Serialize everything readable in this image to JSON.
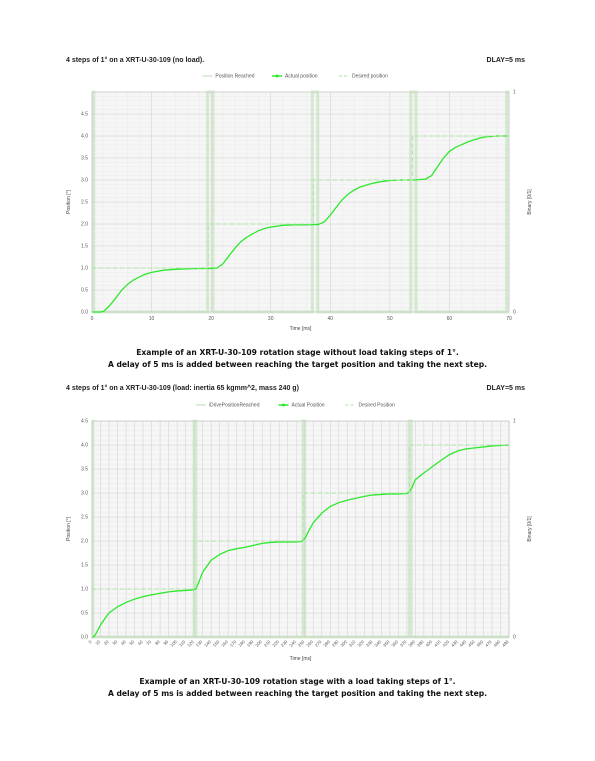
{
  "chart_data": [
    {
      "type": "line",
      "title": "4 steps of 1° on a XRT-U-30-109 (no load).",
      "delay_label": "DLAY=5 ms",
      "xlabel": "Time [ms]",
      "ylabel": "Position [°]",
      "y2label": "Binary [0/1]",
      "xlim": [
        0,
        70
      ],
      "ylim": [
        0,
        5
      ],
      "x_ticks": [
        "0",
        "10",
        "20",
        "30",
        "40",
        "50",
        "60",
        "70"
      ],
      "x_tick_values": [
        0,
        10,
        20,
        30,
        40,
        50,
        60,
        70
      ],
      "y_ticks": [
        "0.0",
        "0.5",
        "1.0",
        "1.5",
        "2.0",
        "2.5",
        "3.0",
        "3.5",
        "4.0",
        "4.5"
      ],
      "y_tick_values": [
        0,
        0.5,
        1,
        1.5,
        2,
        2.5,
        3,
        3.5,
        4,
        4.5
      ],
      "y2_ticks": [
        "0",
        "1"
      ],
      "grid": true,
      "legend_position": "top-center",
      "series": [
        {
          "name": "Position Reached",
          "style": "binary",
          "color": "#b9dcb3",
          "x": [
            0,
            0.3,
            0.3,
            19.4,
            19.4,
            20.3,
            20.3,
            37.0,
            37.0,
            37.9,
            37.9,
            53.5,
            53.5,
            54.4,
            54.4,
            69.6,
            69.6,
            70
          ],
          "values": [
            1,
            1,
            0,
            0,
            1,
            1,
            0,
            0,
            1,
            1,
            0,
            0,
            1,
            1,
            0,
            0,
            1,
            1
          ]
        },
        {
          "name": "Actual position",
          "style": "solid",
          "color": "#2ee82e",
          "x": [
            0,
            1,
            1.5,
            2,
            3,
            4,
            5,
            6,
            7,
            8,
            9,
            10,
            12,
            14,
            16,
            18,
            20,
            21,
            22,
            23,
            24,
            25,
            26,
            27,
            28,
            29,
            30,
            32,
            34,
            36,
            38,
            39,
            40,
            41,
            42,
            43,
            44,
            45,
            46,
            47,
            48,
            49,
            50,
            52,
            54,
            56,
            57,
            58,
            59,
            60,
            61,
            62,
            63,
            64,
            65,
            66,
            67,
            68,
            70
          ],
          "values": [
            0,
            0,
            0,
            0.02,
            0.15,
            0.32,
            0.5,
            0.63,
            0.73,
            0.8,
            0.86,
            0.9,
            0.95,
            0.97,
            0.98,
            0.99,
            0.99,
            1.0,
            1.1,
            1.28,
            1.45,
            1.6,
            1.7,
            1.78,
            1.85,
            1.9,
            1.93,
            1.97,
            1.98,
            1.98,
            1.99,
            2.05,
            2.2,
            2.38,
            2.55,
            2.68,
            2.77,
            2.84,
            2.88,
            2.92,
            2.95,
            2.97,
            2.99,
            3.0,
            3.0,
            3.02,
            3.1,
            3.3,
            3.5,
            3.65,
            3.74,
            3.8,
            3.86,
            3.91,
            3.95,
            3.98,
            3.99,
            4.0,
            4.0
          ]
        },
        {
          "name": "Desired position",
          "style": "dashed",
          "color": "#a8e6a0",
          "x": [
            0,
            19.5,
            19.5,
            37.2,
            37.2,
            53.8,
            53.8,
            70
          ],
          "values": [
            1,
            1,
            2,
            2,
            3,
            3,
            4,
            4
          ]
        }
      ]
    },
    {
      "type": "line",
      "title": "4 steps of 1° on a XRT-U-30-109 (load: inertia 65 kgmm^2, mass 240 g)",
      "delay_label": "DLAY=5 ms",
      "xlabel": "Time [ms]",
      "ylabel": "Position [°]",
      "y2label": "Binary [0/1]",
      "xlim": [
        0,
        490
      ],
      "ylim": [
        0,
        4.5
      ],
      "x_ticks": [
        "0",
        "10",
        "20",
        "30",
        "40",
        "50",
        "60",
        "70",
        "80",
        "90",
        "100",
        "110",
        "120",
        "130",
        "140",
        "150",
        "160",
        "170",
        "180",
        "190",
        "200",
        "210",
        "220",
        "230",
        "240",
        "250",
        "260",
        "270",
        "280",
        "290",
        "300",
        "310",
        "320",
        "330",
        "340",
        "350",
        "360",
        "370",
        "380",
        "390",
        "400",
        "410",
        "420",
        "430",
        "440",
        "450",
        "460",
        "470",
        "480",
        "490"
      ],
      "x_tick_values": [
        0,
        10,
        20,
        30,
        40,
        50,
        60,
        70,
        80,
        90,
        100,
        110,
        120,
        130,
        140,
        150,
        160,
        170,
        180,
        190,
        200,
        210,
        220,
        230,
        240,
        250,
        260,
        270,
        280,
        290,
        300,
        310,
        320,
        330,
        340,
        350,
        360,
        370,
        380,
        390,
        400,
        410,
        420,
        430,
        440,
        450,
        460,
        470,
        480,
        490
      ],
      "y_ticks": [
        "0.0",
        "0.5",
        "1.0",
        "1.5",
        "2.0",
        "2.5",
        "3.0",
        "3.5",
        "4.0",
        "4.5"
      ],
      "y_tick_values": [
        0,
        0.5,
        1,
        1.5,
        2,
        2.5,
        3,
        3.5,
        4,
        4.5
      ],
      "y2_ticks": [
        "0",
        "1"
      ],
      "grid": true,
      "legend_position": "top-center",
      "series": [
        {
          "name": "iDrivePositionReached",
          "style": "binary",
          "color": "#b9dcb3",
          "x": [
            0,
            1,
            1,
            120,
            120,
            122,
            122,
            248,
            248,
            250,
            250,
            373,
            373,
            375,
            375,
            490
          ],
          "values": [
            1,
            1,
            0,
            0,
            1,
            1,
            0,
            0,
            1,
            1,
            0,
            0,
            1,
            1,
            0,
            0
          ]
        },
        {
          "name": "Actual Position",
          "style": "solid",
          "color": "#2ee82e",
          "x": [
            0,
            2,
            5,
            10,
            15,
            20,
            30,
            40,
            50,
            60,
            70,
            80,
            90,
            100,
            110,
            118,
            122,
            125,
            130,
            140,
            150,
            160,
            170,
            180,
            190,
            200,
            210,
            220,
            230,
            240,
            246,
            250,
            255,
            260,
            270,
            280,
            290,
            300,
            310,
            320,
            330,
            340,
            350,
            360,
            370,
            373,
            377,
            380,
            390,
            400,
            410,
            420,
            430,
            440,
            450,
            460,
            470,
            480,
            490
          ],
          "values": [
            0,
            0,
            0.08,
            0.25,
            0.38,
            0.5,
            0.63,
            0.72,
            0.79,
            0.84,
            0.88,
            0.91,
            0.94,
            0.96,
            0.97,
            0.98,
            1.0,
            1.12,
            1.35,
            1.6,
            1.72,
            1.8,
            1.84,
            1.87,
            1.91,
            1.95,
            1.97,
            1.98,
            1.98,
            1.98,
            1.99,
            2.05,
            2.22,
            2.38,
            2.58,
            2.72,
            2.8,
            2.85,
            2.89,
            2.93,
            2.96,
            2.97,
            2.98,
            2.98,
            2.99,
            3.02,
            3.15,
            3.28,
            3.42,
            3.55,
            3.68,
            3.8,
            3.88,
            3.92,
            3.94,
            3.96,
            3.98,
            3.99,
            4.0
          ]
        },
        {
          "name": "Desired Position",
          "style": "dashed",
          "color": "#a8e6a0",
          "x": [
            0,
            120,
            120,
            248,
            248,
            373,
            373,
            490
          ],
          "values": [
            1,
            1,
            2,
            2,
            3,
            3,
            4,
            4
          ]
        }
      ]
    }
  ],
  "captions": [
    {
      "line1": "Example of an XRT-U-30-109 rotation stage without load taking steps of 1°.",
      "line2": "A delay of 5 ms is added between reaching the target position and taking the next step."
    },
    {
      "line1": "Example of an XRT-U-30-109 rotation stage with a load taking steps of 1°.",
      "line2": "A delay of 5 ms is added between reaching the target position and taking the next step."
    }
  ]
}
